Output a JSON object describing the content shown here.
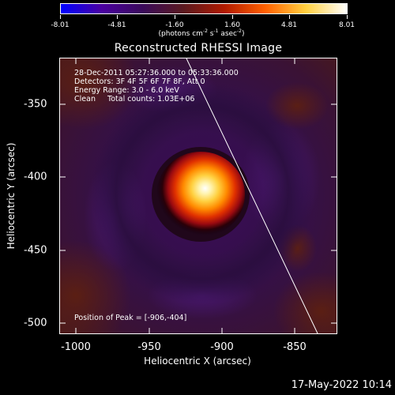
{
  "colorbar": {
    "ticks": [
      "-8.01",
      "-4.81",
      "-1.60",
      "1.60",
      "4.81",
      "8.01"
    ],
    "units_prefix": "(photons cm",
    "units_exp1": "-2",
    "units_mid1": " s",
    "units_exp2": "-1",
    "units_mid2": " asec",
    "units_exp3": "-2",
    "units_suffix": ")",
    "colors": [
      "#0000ff",
      "#4a00a0",
      "#3a0a5a",
      "#5a1a20",
      "#b01a00",
      "#ff6000",
      "#ffd040",
      "#ffffff"
    ]
  },
  "title": "Reconstructed RHESSI Image",
  "info": {
    "line1": "28-Dec-2011 05:27:36.000 to 05:33:36.000",
    "line2": "Detectors: 3F 4F 5F 6F 7F 8F, Att 0",
    "line3": "Energy Range: 3.0 - 6.0 keV",
    "line4": "Clean     Total counts: 1.03E+06"
  },
  "peak_label": "Position of Peak = [-906,-404]",
  "yticks": [
    "-350",
    "-400",
    "-450",
    "-500"
  ],
  "xticks": [
    "-1000",
    "-950",
    "-900",
    "-850"
  ],
  "ylabel": "Heliocentric Y (arcsec)",
  "xlabel": "Heliocentric X (arcsec)",
  "timestamp": "17-May-2022 10:14"
}
